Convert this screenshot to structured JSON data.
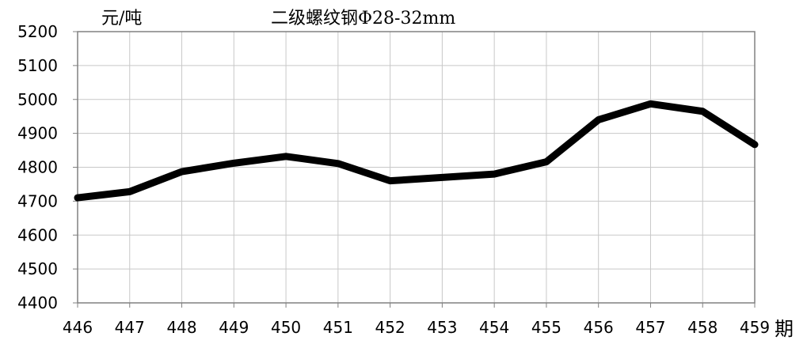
{
  "chart_data": {
    "type": "line",
    "title": "二级螺纹钢Φ28-32mm",
    "ylabel": "元/吨",
    "xlabel": "期",
    "categories": [
      "446",
      "447",
      "448",
      "449",
      "450",
      "451",
      "452",
      "453",
      "454",
      "455",
      "456",
      "457",
      "458",
      "459"
    ],
    "series": [
      {
        "values": [
          4710,
          4728,
          4787,
          4812,
          4832,
          4811,
          4760,
          4770,
          4780,
          4816,
          4940,
          4987,
          4965,
          4867
        ]
      }
    ],
    "ylim": [
      4400,
      5200
    ],
    "yticks": [
      4400,
      4500,
      4600,
      4700,
      4800,
      4900,
      5000,
      5100,
      5200
    ],
    "grid": true,
    "colors": {
      "line": "#000000",
      "grid": "#c8c8c8",
      "axis": "#808080"
    }
  }
}
